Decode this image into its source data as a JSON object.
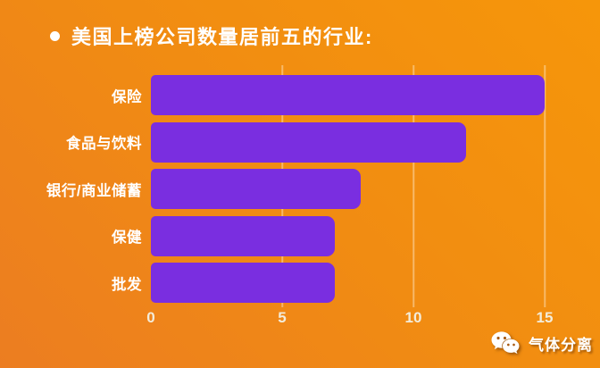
{
  "title": {
    "text": "美国上榜公司数量居前五的行业:"
  },
  "colors": {
    "background_top_right": "#f6960a",
    "background_bottom_left": "#ec7d21",
    "bar": "#7a2ee0",
    "title_text": "#ffffff",
    "category_text": "#ffffff",
    "axis_text": "#f3ecda",
    "gridline": "rgba(255,238,210,0.45)"
  },
  "chart_data": {
    "type": "bar",
    "orientation": "horizontal",
    "title": "美国上榜公司数量居前五的行业:",
    "categories": [
      "保险",
      "食品与饮料",
      "银行/商业储蓄",
      "保健",
      "批发"
    ],
    "values": [
      15,
      12,
      8,
      7,
      7
    ],
    "xlabel": "",
    "ylabel": "",
    "xlim": [
      0,
      15
    ],
    "x_ticks": [
      0,
      5,
      10,
      15
    ],
    "grid": true,
    "legend": false,
    "bar_color": "#7a2ee0"
  },
  "watermark": {
    "icon": "wechat-icon",
    "text": "气体分离"
  }
}
